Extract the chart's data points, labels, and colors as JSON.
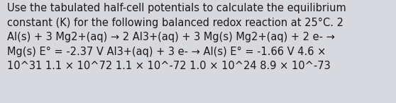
{
  "background_color": "#d8d9de",
  "text_line1": "Use the tabulated half-cell potentials to calculate the equilibrium",
  "text_line2": "constant (K) for the following balanced redox reaction at 25°C. 2",
  "text_line3": "Al(s) + 3 Mg2+(aq) → 2 Al3+(aq) + 3 Mg(s) Mg2+(aq) + 2 e- →",
  "text_line4": "Mg(s) E° = -2.37 V Al3+(aq) + 3 e- → Al(s) E° = -1.66 V 4.6 ×",
  "text_line5": "10^31 1.1 × 10^72 1.1 × 10^-72 1.0 × 10^24 8.9 × 10^-73",
  "font_size": 10.5,
  "text_color": "#1a1a1a",
  "font_family": "DejaVu Sans",
  "figwidth": 5.58,
  "figheight": 1.46,
  "dpi": 100
}
